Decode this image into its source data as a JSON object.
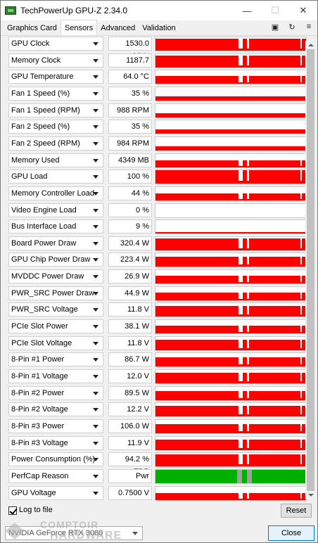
{
  "window": {
    "title": "TechPowerUp GPU-Z 2.34.0",
    "minimize": "—",
    "maximize": "☐",
    "close": "✕"
  },
  "tabs": [
    {
      "label": "Graphics Card",
      "active": false
    },
    {
      "label": "Sensors",
      "active": true
    },
    {
      "label": "Advanced",
      "active": false
    },
    {
      "label": "Validation",
      "active": false
    }
  ],
  "toolbar_icons": [
    "camera-icon",
    "refresh-icon",
    "menu-icon"
  ],
  "colors": {
    "graph_red": "#ff0000",
    "graph_green": "#00b000",
    "graph_gray": "#a0a0a0"
  },
  "sensors": [
    {
      "name": "GPU Clock",
      "value": "1530.0 MHz",
      "level": 0.9,
      "pattern": "full"
    },
    {
      "name": "Memory Clock",
      "value": "1187.7 MHz",
      "level": 0.9,
      "pattern": "full"
    },
    {
      "name": "GPU Temperature",
      "value": "64.0 °C",
      "level": 0.6,
      "pattern": "mid"
    },
    {
      "name": "Fan 1 Speed (%)",
      "value": "35 %",
      "level": 0.3,
      "pattern": "low"
    },
    {
      "name": "Fan 1 Speed (RPM)",
      "value": "988 RPM",
      "level": 0.3,
      "pattern": "low"
    },
    {
      "name": "Fan 2 Speed (%)",
      "value": "35 %",
      "level": 0.3,
      "pattern": "low"
    },
    {
      "name": "Fan 2 Speed (RPM)",
      "value": "984 RPM",
      "level": 0.3,
      "pattern": "low"
    },
    {
      "name": "Memory Used",
      "value": "4349 MB",
      "level": 0.5,
      "pattern": "mid"
    },
    {
      "name": "GPU Load",
      "value": "100 %",
      "level": 1.0,
      "pattern": "full"
    },
    {
      "name": "Memory Controller Load",
      "value": "44 %",
      "level": 0.5,
      "pattern": "mid"
    },
    {
      "name": "Video Engine Load",
      "value": "0 %",
      "level": 0.0,
      "pattern": "none"
    },
    {
      "name": "Bus Interface Load",
      "value": "9 %",
      "level": 0.1,
      "pattern": "tiny"
    },
    {
      "name": "Board Power Draw",
      "value": "320.4 W",
      "level": 0.9,
      "pattern": "full"
    },
    {
      "name": "GPU Chip Power Draw",
      "value": "223.4 W",
      "level": 0.75,
      "pattern": "full"
    },
    {
      "name": "MVDDC Power Draw",
      "value": "26.9 W",
      "level": 0.6,
      "pattern": "mid"
    },
    {
      "name": "PWR_SRC Power Draw",
      "value": "44.9 W",
      "level": 0.6,
      "pattern": "mid"
    },
    {
      "name": "PWR_SRC Voltage",
      "value": "11.8 V",
      "level": 0.8,
      "pattern": "full"
    },
    {
      "name": "PCIe Slot Power",
      "value": "38.1 W",
      "level": 0.6,
      "pattern": "mid"
    },
    {
      "name": "PCIe Slot Voltage",
      "value": "11.8 V",
      "level": 0.8,
      "pattern": "full"
    },
    {
      "name": "8-Pin #1 Power",
      "value": "86.7 W",
      "level": 0.7,
      "pattern": "full"
    },
    {
      "name": "8-Pin #1 Voltage",
      "value": "12.0 V",
      "level": 0.8,
      "pattern": "full"
    },
    {
      "name": "8-Pin #2 Power",
      "value": "89.5 W",
      "level": 0.7,
      "pattern": "full"
    },
    {
      "name": "8-Pin #2 Voltage",
      "value": "12.2 V",
      "level": 0.8,
      "pattern": "full"
    },
    {
      "name": "8-Pin #3 Power",
      "value": "106.0 W",
      "level": 0.7,
      "pattern": "full"
    },
    {
      "name": "8-Pin #3 Voltage",
      "value": "11.9 V",
      "level": 0.8,
      "pattern": "full"
    },
    {
      "name": "Power Consumption (%)",
      "value": "94.2 % TDP",
      "level": 0.9,
      "pattern": "full"
    },
    {
      "name": "PerfCap Reason",
      "value": "Pwr",
      "level": 1.0,
      "pattern": "perfcap"
    },
    {
      "name": "GPU Voltage",
      "value": "0.7500 V",
      "level": 0.5,
      "pattern": "mid"
    }
  ],
  "footer": {
    "log_label": "Log to file",
    "log_checked": true,
    "reset_label": "Reset",
    "gpu_selected": "NVIDIA GeForce RTX 3080",
    "close_label": "Close"
  },
  "watermark": {
    "line1": "COMPTOIR",
    "line2": "HARDWARE"
  }
}
